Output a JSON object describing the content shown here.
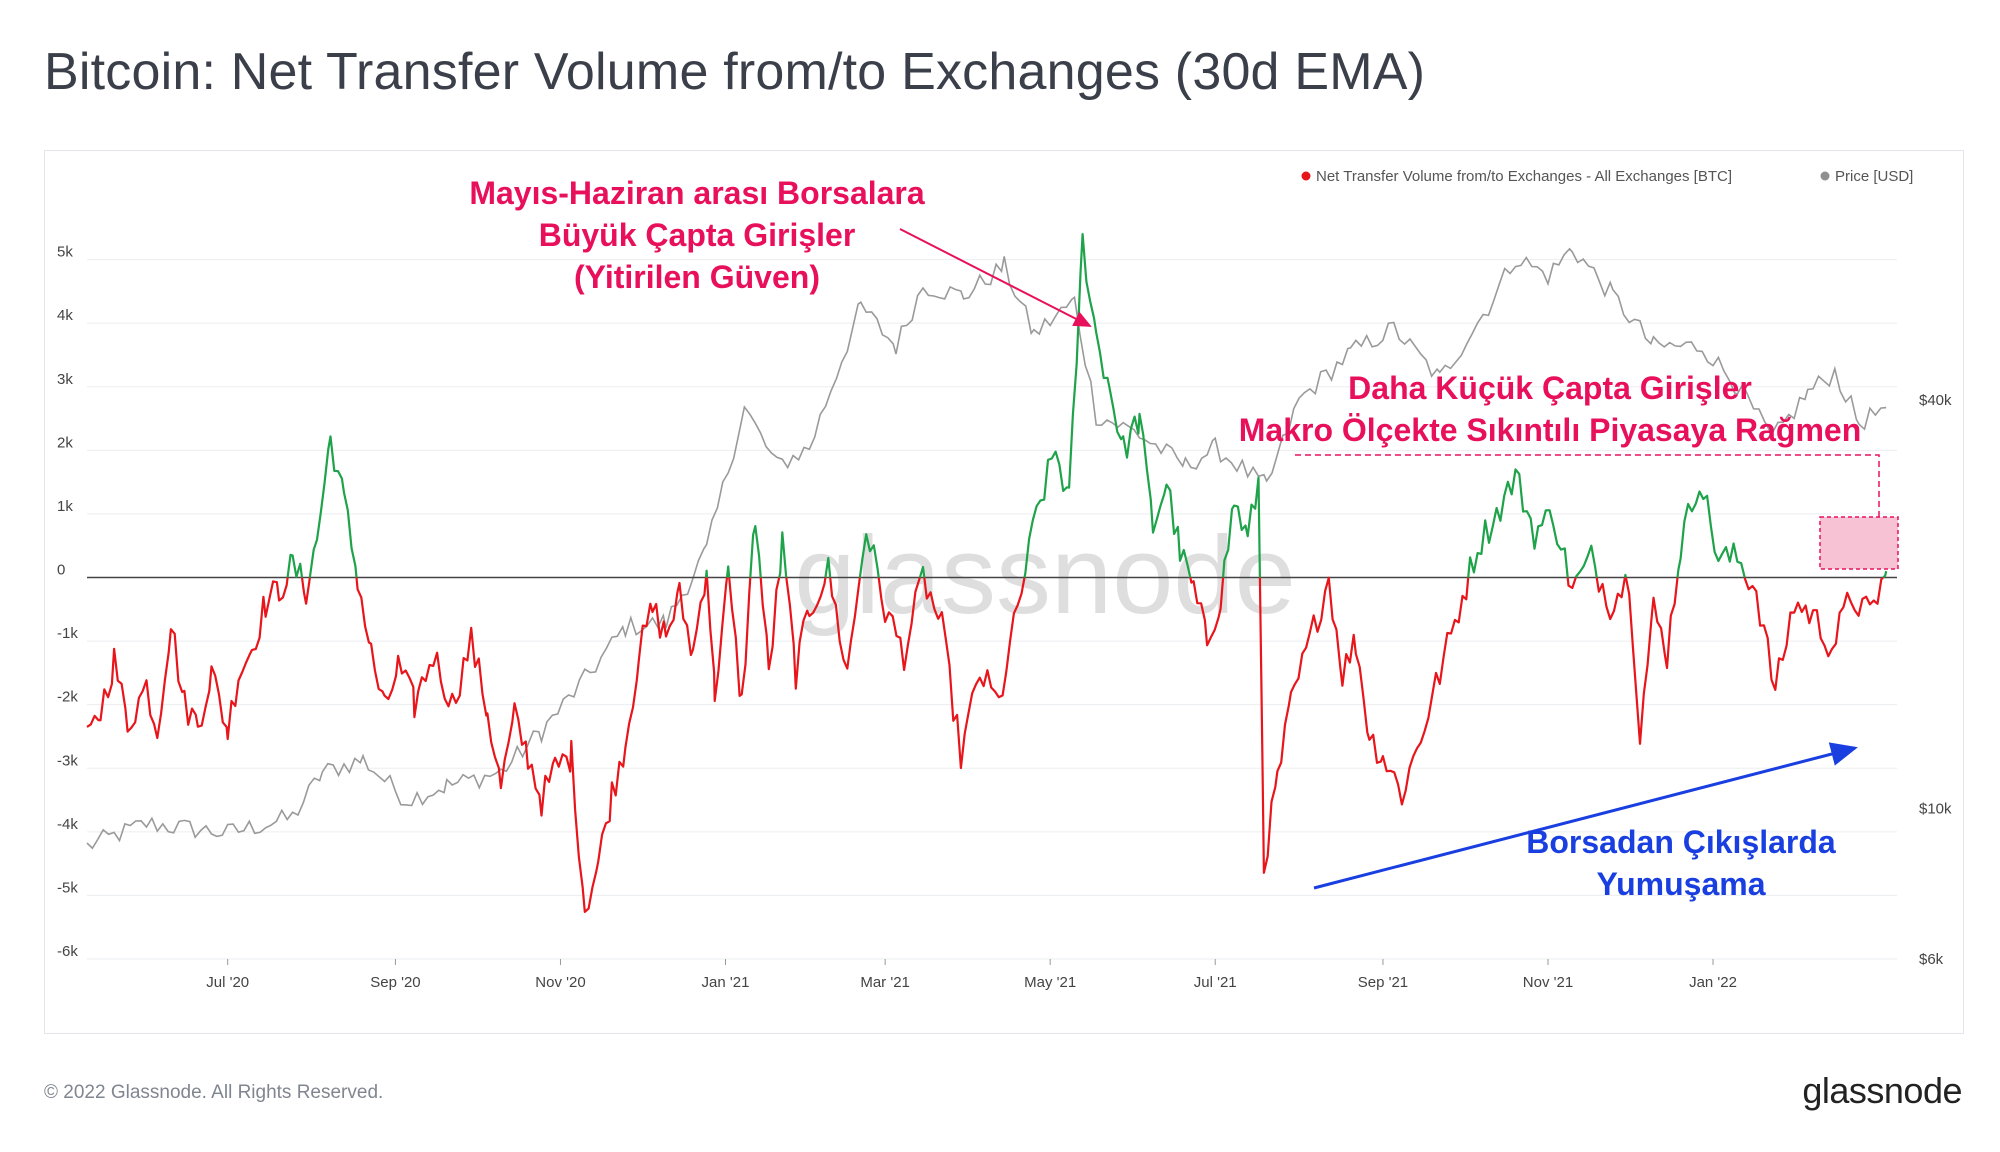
{
  "page": {
    "title": "Bitcoin: Net Transfer Volume from/to Exchanges (30d EMA)",
    "copyright": "© 2022 Glassnode. All Rights Reserved.",
    "brand": "glassnode",
    "watermark": "glassnode"
  },
  "colors": {
    "positive": "#1fa34a",
    "negative": "#e8151b",
    "price": "#9a9a9a",
    "annotation_pink": "#e8105b",
    "annotation_blue": "#1a3fe0"
  },
  "chart_data": {
    "type": "line",
    "legend": [
      {
        "label": "Net Transfer Volume from/to Exchanges - All Exchanges [BTC]",
        "color": "#e8151b"
      },
      {
        "label": "Price [USD]",
        "color": "#9a9a9a"
      }
    ],
    "legend_position": "top-right",
    "x_ticks": [
      "Jul '20",
      "Sep '20",
      "Nov '20",
      "Jan '21",
      "Mar '21",
      "May '21",
      "Jul '21",
      "Sep '21",
      "Nov '21",
      "Jan '22"
    ],
    "x_tick_dates": [
      "2020-07-01",
      "2020-09-01",
      "2020-11-01",
      "2021-01-01",
      "2021-03-01",
      "2021-05-01",
      "2021-07-01",
      "2021-09-01",
      "2021-11-01",
      "2022-01-01"
    ],
    "x_range": [
      "2020-05-10",
      "2022-03-10"
    ],
    "y_left": {
      "ticks": [
        "-6k",
        "-5k",
        "-4k",
        "-3k",
        "-2k",
        "-1k",
        "0",
        "1k",
        "2k",
        "3k",
        "4k",
        "5k"
      ],
      "range": [
        -6000,
        6000
      ]
    },
    "y_right": {
      "ticks": [
        "$6k",
        "$10k",
        "$40k"
      ],
      "scale": "log",
      "range": [
        6000,
        80000
      ]
    },
    "grid": true,
    "series": [
      {
        "name": "Net Transfer Volume from/to Exchanges - All Exchanges [BTC]",
        "color_rule": "green above 0, red below 0",
        "points": [
          [
            "2020-05-10",
            -2600
          ],
          [
            "2020-05-15",
            -2100
          ],
          [
            "2020-05-20",
            -1300
          ],
          [
            "2020-05-25",
            -2300
          ],
          [
            "2020-06-01",
            -1700
          ],
          [
            "2020-06-05",
            -2400
          ],
          [
            "2020-06-10",
            -700
          ],
          [
            "2020-06-15",
            -2000
          ],
          [
            "2020-06-20",
            -2300
          ],
          [
            "2020-06-25",
            -1500
          ],
          [
            "2020-07-01",
            -2400
          ],
          [
            "2020-07-05",
            -1500
          ],
          [
            "2020-07-10",
            -1100
          ],
          [
            "2020-07-15",
            -400
          ],
          [
            "2020-07-20",
            -200
          ],
          [
            "2020-07-25",
            200
          ],
          [
            "2020-07-30",
            -200
          ],
          [
            "2020-08-03",
            600
          ],
          [
            "2020-08-08",
            2200
          ],
          [
            "2020-08-13",
            1200
          ],
          [
            "2020-08-18",
            0
          ],
          [
            "2020-08-23",
            -1200
          ],
          [
            "2020-08-28",
            -2100
          ],
          [
            "2020-09-02",
            -1400
          ],
          [
            "2020-09-08",
            -2000
          ],
          [
            "2020-09-15",
            -1200
          ],
          [
            "2020-09-22",
            -2000
          ],
          [
            "2020-09-29",
            -1000
          ],
          [
            "2020-10-05",
            -2100
          ],
          [
            "2020-10-10",
            -3300
          ],
          [
            "2020-10-15",
            -2200
          ],
          [
            "2020-10-20",
            -2800
          ],
          [
            "2020-10-25",
            -3500
          ],
          [
            "2020-10-30",
            -3000
          ],
          [
            "2020-11-05",
            -2800
          ],
          [
            "2020-11-10",
            -5200
          ],
          [
            "2020-11-15",
            -4500
          ],
          [
            "2020-11-20",
            -3400
          ],
          [
            "2020-11-25",
            -2600
          ],
          [
            "2020-11-30",
            -1200
          ],
          [
            "2020-12-05",
            -500
          ],
          [
            "2020-12-10",
            -900
          ],
          [
            "2020-12-15",
            -300
          ],
          [
            "2020-12-20",
            -1200
          ],
          [
            "2020-12-25",
            200
          ],
          [
            "2020-12-28",
            -1800
          ],
          [
            "2021-01-02",
            0
          ],
          [
            "2021-01-07",
            -2000
          ],
          [
            "2021-01-12",
            1000
          ],
          [
            "2021-01-17",
            -1500
          ],
          [
            "2021-01-22",
            500
          ],
          [
            "2021-01-27",
            -1500
          ],
          [
            "2021-02-01",
            -500
          ],
          [
            "2021-02-08",
            100
          ],
          [
            "2021-02-15",
            -1500
          ],
          [
            "2021-02-22",
            800
          ],
          [
            "2021-03-01",
            -500
          ],
          [
            "2021-03-08",
            -1200
          ],
          [
            "2021-03-15",
            0
          ],
          [
            "2021-03-22",
            -800
          ],
          [
            "2021-03-29",
            -2800
          ],
          [
            "2021-04-05",
            -1500
          ],
          [
            "2021-04-12",
            -2000
          ],
          [
            "2021-04-19",
            -500
          ],
          [
            "2021-04-26",
            1000
          ],
          [
            "2021-05-03",
            2000
          ],
          [
            "2021-05-08",
            1200
          ],
          [
            "2021-05-13",
            5300
          ],
          [
            "2021-05-18",
            3800
          ],
          [
            "2021-05-23",
            3000
          ],
          [
            "2021-05-28",
            2000
          ],
          [
            "2021-06-03",
            2500
          ],
          [
            "2021-06-08",
            800
          ],
          [
            "2021-06-13",
            1500
          ],
          [
            "2021-06-18",
            400
          ],
          [
            "2021-06-23",
            -200
          ],
          [
            "2021-06-28",
            -1000
          ],
          [
            "2021-07-03",
            -300
          ],
          [
            "2021-07-08",
            1200
          ],
          [
            "2021-07-13",
            600
          ],
          [
            "2021-07-17",
            1500
          ],
          [
            "2021-07-19",
            -4500
          ],
          [
            "2021-07-24",
            -3200
          ],
          [
            "2021-07-29",
            -2000
          ],
          [
            "2021-08-05",
            -1000
          ],
          [
            "2021-08-12",
            0
          ],
          [
            "2021-08-17",
            -1500
          ],
          [
            "2021-08-22",
            -1000
          ],
          [
            "2021-08-27",
            -2500
          ],
          [
            "2021-09-01",
            -2800
          ],
          [
            "2021-09-08",
            -3400
          ],
          [
            "2021-09-15",
            -2500
          ],
          [
            "2021-09-22",
            -1500
          ],
          [
            "2021-09-29",
            -500
          ],
          [
            "2021-10-06",
            500
          ],
          [
            "2021-10-13",
            1000
          ],
          [
            "2021-10-20",
            1600
          ],
          [
            "2021-10-27",
            700
          ],
          [
            "2021-11-03",
            1000
          ],
          [
            "2021-11-10",
            -200
          ],
          [
            "2021-11-17",
            300
          ],
          [
            "2021-11-24",
            -400
          ],
          [
            "2021-12-01",
            0
          ],
          [
            "2021-12-05",
            -2400
          ],
          [
            "2021-12-10",
            -500
          ],
          [
            "2021-12-15",
            -1200
          ],
          [
            "2021-12-20",
            500
          ],
          [
            "2021-12-27",
            1600
          ],
          [
            "2022-01-03",
            300
          ],
          [
            "2022-01-10",
            300
          ],
          [
            "2022-01-17",
            -200
          ],
          [
            "2022-01-24",
            -1800
          ],
          [
            "2022-01-31",
            -400
          ],
          [
            "2022-02-07",
            -600
          ],
          [
            "2022-02-14",
            -1100
          ],
          [
            "2022-02-21",
            -300
          ],
          [
            "2022-02-28",
            -600
          ],
          [
            "2022-03-06",
            100
          ]
        ]
      },
      {
        "name": "Price [USD]",
        "points": [
          [
            "2020-05-10",
            8800
          ],
          [
            "2020-06-01",
            9500
          ],
          [
            "2020-07-01",
            9200
          ],
          [
            "2020-07-25",
            9700
          ],
          [
            "2020-08-05",
            11300
          ],
          [
            "2020-08-20",
            11800
          ],
          [
            "2020-09-05",
            10300
          ],
          [
            "2020-09-20",
            10800
          ],
          [
            "2020-10-10",
            11300
          ],
          [
            "2020-10-25",
            13000
          ],
          [
            "2020-11-10",
            15500
          ],
          [
            "2020-11-25",
            18500
          ],
          [
            "2020-12-10",
            18800
          ],
          [
            "2020-12-25",
            24000
          ],
          [
            "2021-01-08",
            39000
          ],
          [
            "2021-01-20",
            32000
          ],
          [
            "2021-02-01",
            34000
          ],
          [
            "2021-02-20",
            55000
          ],
          [
            "2021-03-05",
            48000
          ],
          [
            "2021-03-15",
            59000
          ],
          [
            "2021-03-30",
            57000
          ],
          [
            "2021-04-14",
            63000
          ],
          [
            "2021-04-25",
            50000
          ],
          [
            "2021-05-10",
            56000
          ],
          [
            "2021-05-18",
            38000
          ],
          [
            "2021-06-01",
            36000
          ],
          [
            "2021-06-20",
            32000
          ],
          [
            "2021-07-01",
            34000
          ],
          [
            "2021-07-20",
            29800
          ],
          [
            "2021-08-01",
            40000
          ],
          [
            "2021-08-20",
            47000
          ],
          [
            "2021-09-05",
            51000
          ],
          [
            "2021-09-22",
            43000
          ],
          [
            "2021-10-10",
            55000
          ],
          [
            "2021-10-20",
            65000
          ],
          [
            "2021-11-01",
            61000
          ],
          [
            "2021-11-10",
            67000
          ],
          [
            "2021-11-25",
            57000
          ],
          [
            "2021-12-10",
            48000
          ],
          [
            "2021-12-28",
            48000
          ],
          [
            "2022-01-10",
            42000
          ],
          [
            "2022-01-23",
            35000
          ],
          [
            "2022-02-05",
            41000
          ],
          [
            "2022-02-15",
            44000
          ],
          [
            "2022-02-24",
            37000
          ],
          [
            "2022-03-06",
            39000
          ]
        ]
      }
    ],
    "annotations": [
      {
        "lines": [
          "Mayıs-Haziran arası Borsalara",
          "Büyük Çapta Girişler",
          "(Yitirilen Güven)"
        ],
        "color": "#e8105b"
      },
      {
        "lines": [
          "Daha Küçük Çapta Girişler",
          "Makro Ölçekte Sıkıntılı Piyasaya Rağmen"
        ],
        "color": "#e8105b"
      },
      {
        "lines": [
          "Borsadan Çıkışlarda",
          "Yumuşama"
        ],
        "color": "#1a3fe0"
      }
    ]
  }
}
